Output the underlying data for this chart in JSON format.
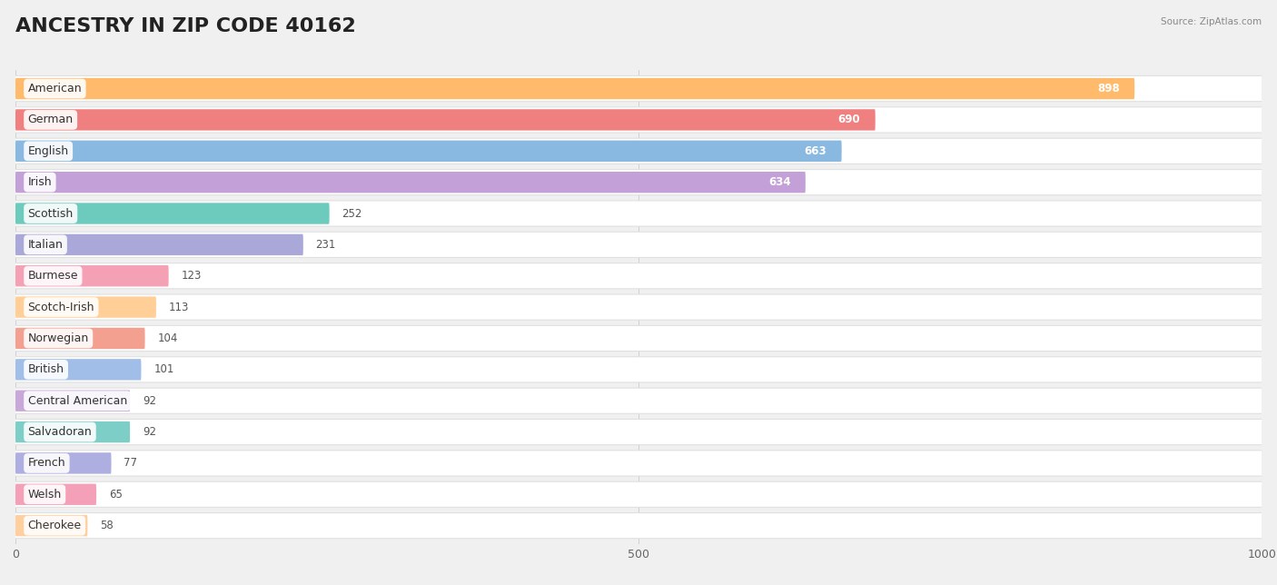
{
  "title": "ANCESTRY IN ZIP CODE 40162",
  "source": "Source: ZipAtlas.com",
  "categories": [
    "American",
    "German",
    "English",
    "Irish",
    "Scottish",
    "Italian",
    "Burmese",
    "Scotch-Irish",
    "Norwegian",
    "British",
    "Central American",
    "Salvadoran",
    "French",
    "Welsh",
    "Cherokee"
  ],
  "values": [
    898,
    690,
    663,
    634,
    252,
    231,
    123,
    113,
    104,
    101,
    92,
    92,
    77,
    65,
    58
  ],
  "colors": [
    "#FFBB6B",
    "#F08080",
    "#89B8E0",
    "#C3A0D8",
    "#6DCBBD",
    "#A9A8D8",
    "#F4A0B5",
    "#FFCF97",
    "#F4A090",
    "#A0BEE8",
    "#C8A8D8",
    "#7ECEC8",
    "#AEAEE0",
    "#F4A0B8",
    "#FFCFA0"
  ],
  "xlim": [
    0,
    1000
  ],
  "xticks": [
    0,
    500,
    1000
  ],
  "background_color": "#f0f0f0",
  "row_bg_color": "#ffffff",
  "title_fontsize": 16,
  "label_fontsize": 9,
  "value_fontsize": 8.5,
  "value_color_inside": "#ffffff",
  "value_color_outside": "#555555",
  "value_threshold": 500
}
